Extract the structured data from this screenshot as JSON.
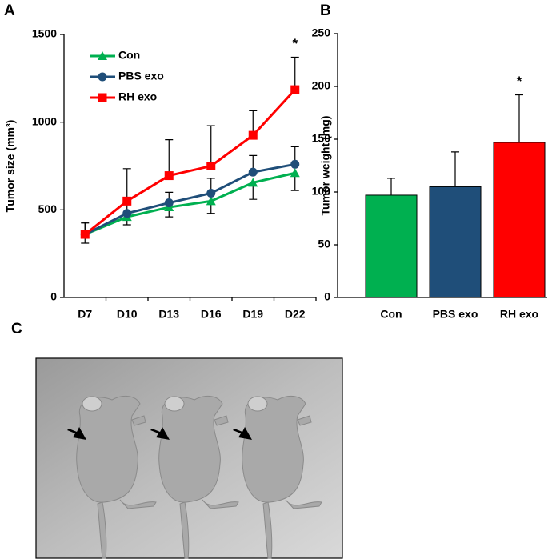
{
  "chart_data": [
    {
      "type": "line",
      "panel": "A",
      "y_label": "Tumor size (mm³)",
      "categories": [
        "D7",
        "D10",
        "D13",
        "D16",
        "D19",
        "D22"
      ],
      "ylim": [
        0,
        1500
      ],
      "yticks": [
        0,
        500,
        1000,
        1500
      ],
      "legend": "top-left",
      "series": [
        {
          "name": "Con",
          "color": "#00b050",
          "marker": "triangle",
          "error_direction": "down",
          "values": [
            360,
            460,
            515,
            550,
            655,
            710
          ],
          "errors": [
            50,
            45,
            55,
            70,
            95,
            100
          ]
        },
        {
          "name": "PBS exo",
          "color": "#1f4e79",
          "marker": "circle",
          "error_direction": "up",
          "values": [
            360,
            480,
            540,
            595,
            715,
            760
          ],
          "errors": [
            65,
            50,
            60,
            85,
            95,
            100
          ]
        },
        {
          "name": "RH exo",
          "color": "#ff0000",
          "marker": "square",
          "error_direction": "up",
          "values": [
            360,
            550,
            695,
            750,
            925,
            1185
          ],
          "errors": [
            70,
            185,
            205,
            230,
            140,
            185
          ]
        }
      ],
      "annotations": [
        {
          "text": "*",
          "x": "D22"
        }
      ]
    },
    {
      "type": "bar",
      "panel": "B",
      "y_label": "Tumor weight (mg)",
      "categories": [
        "Con",
        "PBS exo",
        "RH exo"
      ],
      "values": [
        97,
        105,
        147
      ],
      "errors": [
        16,
        33,
        45
      ],
      "colors": [
        "#00b050",
        "#1f4e79",
        "#ff0000"
      ],
      "ylim": [
        0,
        250
      ],
      "yticks": [
        0,
        50,
        100,
        150,
        200,
        250
      ],
      "annotations": [
        {
          "text": "*",
          "x": "RH exo"
        }
      ]
    }
  ],
  "photo_panel": {
    "label": "C"
  }
}
